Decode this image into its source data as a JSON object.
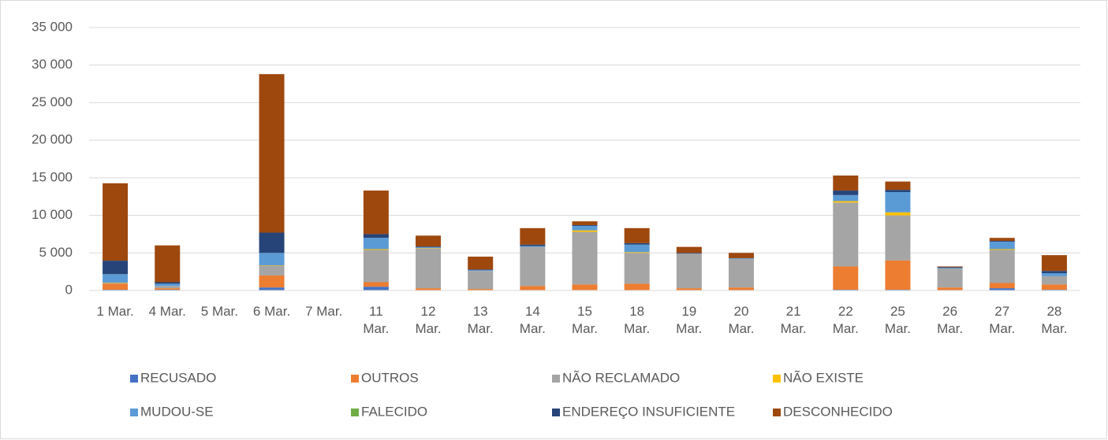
{
  "chart_data": {
    "type": "stacked_bar",
    "categories": [
      "1 Mar.",
      "4 Mar.",
      "5 Mar.",
      "6 Mar.",
      "7 Mar.",
      "11 Mar.",
      "12 Mar.",
      "13 Mar.",
      "14 Mar.",
      "15 Mar.",
      "18 Mar.",
      "19 Mar.",
      "20 Mar.",
      "21 Mar.",
      "22 Mar.",
      "25 Mar.",
      "26 Mar.",
      "27 Mar.",
      "28 Mar."
    ],
    "series": [
      {
        "name": "RECUSADO",
        "color": "#4472C4",
        "values": [
          100,
          100,
          0,
          400,
          0,
          500,
          0,
          0,
          0,
          0,
          0,
          0,
          0,
          0,
          100,
          100,
          0,
          300,
          100
        ]
      },
      {
        "name": "OUTROS",
        "color": "#ED7D31",
        "values": [
          800,
          200,
          0,
          1600,
          0,
          600,
          300,
          200,
          600,
          800,
          900,
          300,
          400,
          0,
          3100,
          3900,
          400,
          700,
          700
        ]
      },
      {
        "name": "NÃO RECLAMADO",
        "color": "#A5A5A5",
        "values": [
          100,
          300,
          0,
          1300,
          0,
          4300,
          5300,
          2400,
          5200,
          7000,
          4100,
          4600,
          3800,
          0,
          8500,
          6000,
          2500,
          4400,
          1100
        ]
      },
      {
        "name": "NÃO EXISTE",
        "color": "#FFC000",
        "values": [
          50,
          0,
          0,
          50,
          0,
          100,
          50,
          0,
          0,
          200,
          100,
          0,
          0,
          0,
          200,
          400,
          0,
          100,
          0
        ]
      },
      {
        "name": "MUDOU-SE",
        "color": "#5B9BD5",
        "values": [
          1100,
          300,
          0,
          1650,
          0,
          1500,
          100,
          100,
          100,
          600,
          1000,
          0,
          100,
          0,
          800,
          2700,
          100,
          1000,
          400
        ]
      },
      {
        "name": "FALECIDO",
        "color": "#70AD47",
        "values": [
          20,
          0,
          0,
          0,
          0,
          0,
          0,
          0,
          0,
          0,
          0,
          0,
          0,
          0,
          0,
          0,
          0,
          0,
          0
        ]
      },
      {
        "name": "ENDEREÇO INSUFICIENTE",
        "color": "#264478",
        "values": [
          1800,
          200,
          0,
          2700,
          0,
          500,
          100,
          100,
          200,
          100,
          200,
          100,
          0,
          0,
          600,
          300,
          100,
          100,
          300
        ]
      },
      {
        "name": "DESCONHECIDO",
        "color": "#9E480E",
        "values": [
          10300,
          4900,
          0,
          21100,
          0,
          5800,
          1450,
          1700,
          2200,
          500,
          2000,
          800,
          700,
          0,
          2000,
          1100,
          100,
          400,
          2100
        ]
      }
    ],
    "ylim": [
      0,
      35000
    ],
    "yticks": [
      0,
      {
        "value": 5000,
        "label": "5 000"
      },
      {
        "value": 10000,
        "label": "10 000"
      },
      {
        "value": 15000,
        "label": "15 000"
      },
      {
        "value": 20000,
        "label": "20 000"
      },
      {
        "value": 25000,
        "label": "25 000"
      },
      {
        "value": 30000,
        "label": "30 000"
      },
      {
        "value": 35000,
        "label": "35 000"
      }
    ],
    "grid": true,
    "legend": "bottom"
  }
}
